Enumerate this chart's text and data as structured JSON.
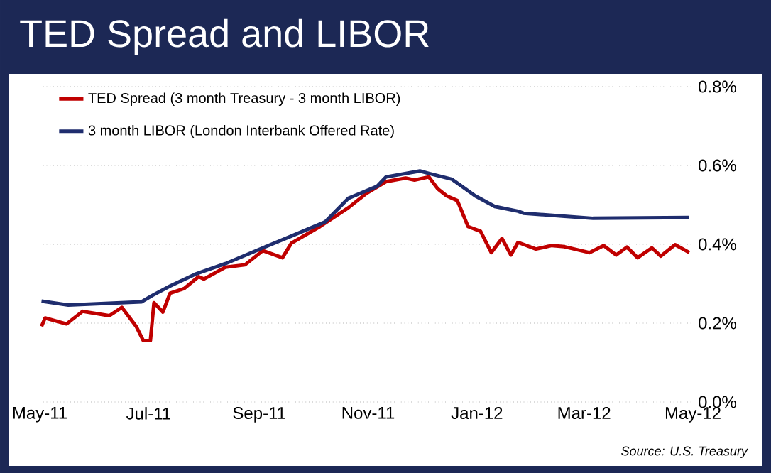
{
  "chart_data": {
    "type": "line",
    "title": "TED Spread and LIBOR",
    "annotations": [
      "Source: U.S. Treasury"
    ],
    "series": [
      {
        "name": "TED Spread (3 month Treasury - 3 month LIBOR)",
        "color": "#c00000",
        "x": [
          "2011-05-02",
          "2011-05-04",
          "2011-05-16",
          "2011-05-25",
          "2011-06-09",
          "2011-06-16",
          "2011-06-24",
          "2011-06-28",
          "2011-07-02",
          "2011-07-04",
          "2011-07-09",
          "2011-07-13",
          "2011-07-21",
          "2011-07-29",
          "2011-08-01",
          "2011-08-13",
          "2011-08-24",
          "2011-09-03",
          "2011-09-14",
          "2011-09-19",
          "2011-10-05",
          "2011-10-21",
          "2011-10-31",
          "2011-11-11",
          "2011-11-22",
          "2011-11-27",
          "2011-12-05",
          "2011-12-10",
          "2011-12-15",
          "2011-12-21",
          "2011-12-27",
          "2012-01-03",
          "2012-01-09",
          "2012-01-15",
          "2012-01-20",
          "2012-01-24",
          "2012-02-03",
          "2012-02-12",
          "2012-02-19",
          "2012-03-04",
          "2012-03-12",
          "2012-03-19",
          "2012-03-25",
          "2012-03-31",
          "2012-04-08",
          "2012-04-13",
          "2012-04-21",
          "2012-04-29"
        ],
        "values": [
          0.192,
          0.213,
          0.198,
          0.23,
          0.219,
          0.24,
          0.192,
          0.156,
          0.156,
          0.252,
          0.228,
          0.276,
          0.288,
          0.318,
          0.312,
          0.342,
          0.348,
          0.384,
          0.366,
          0.403,
          0.445,
          0.493,
          0.529,
          0.559,
          0.568,
          0.563,
          0.571,
          0.541,
          0.523,
          0.511,
          0.445,
          0.433,
          0.379,
          0.415,
          0.373,
          0.405,
          0.388,
          0.397,
          0.394,
          0.379,
          0.397,
          0.373,
          0.393,
          0.366,
          0.391,
          0.37,
          0.399,
          0.379
        ]
      },
      {
        "name": "3 month LIBOR (London Interbank Offered Rate)",
        "color": "#1f2d6e",
        "x": [
          "2011-05-02",
          "2011-05-17",
          "2011-06-27",
          "2011-07-03",
          "2011-07-13",
          "2011-07-27",
          "2011-08-13",
          "2011-09-03",
          "2011-09-19",
          "2011-10-08",
          "2011-10-21",
          "2011-11-06",
          "2011-11-11",
          "2011-11-30",
          "2011-12-05",
          "2011-12-18",
          "2011-12-31",
          "2012-01-11",
          "2012-01-24",
          "2012-01-27",
          "2012-02-19",
          "2012-03-06",
          "2012-04-29"
        ],
        "values": [
          0.256,
          0.246,
          0.254,
          0.27,
          0.294,
          0.324,
          0.351,
          0.391,
          0.421,
          0.457,
          0.517,
          0.547,
          0.571,
          0.586,
          0.58,
          0.565,
          0.523,
          0.496,
          0.484,
          0.479,
          0.471,
          0.466,
          0.468
        ]
      }
    ],
    "xlim": [
      "2011-05-01",
      "2012-05-01"
    ],
    "xticks": [
      {
        "value": "2011-05-01",
        "label": "May-11"
      },
      {
        "value": "2011-07-01",
        "label": "Jul-11"
      },
      {
        "value": "2011-09-01",
        "label": "Sep-11"
      },
      {
        "value": "2011-11-01",
        "label": "Nov-11"
      },
      {
        "value": "2012-01-01",
        "label": "Jan-12"
      },
      {
        "value": "2012-03-01",
        "label": "Mar-12"
      },
      {
        "value": "2012-05-01",
        "label": "May-12"
      }
    ],
    "ylim": [
      0,
      0.8
    ],
    "yticks": [
      {
        "value": 0,
        "label": "0.0%"
      },
      {
        "value": 0.2,
        "label": "0.2%"
      },
      {
        "value": 0.4,
        "label": "0.4%"
      },
      {
        "value": 0.6,
        "label": "0.6%"
      },
      {
        "value": 0.8,
        "label": "0.8%"
      }
    ],
    "grid": "y",
    "legend": "top left",
    "marker": "none",
    "line_style": "solid"
  }
}
